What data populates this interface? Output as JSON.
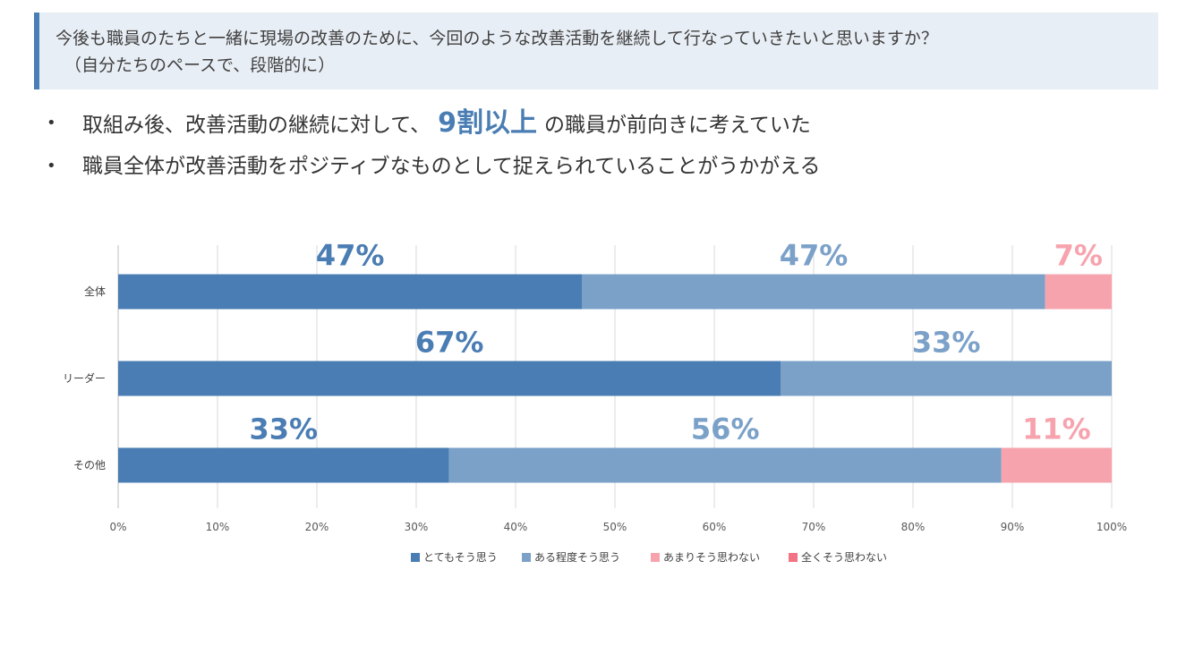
{
  "header": {
    "question_line1": "今後も職員のたちと一緒に現場の改善のために、今回のような改善活動を継続して行なっていきたいと思いますか？",
    "question_line2": "（自分たちのペースで、段階的に）"
  },
  "bullets": [
    {
      "before": "取組み後、改善活動の継続に対して、",
      "highlight": "9割以上",
      "after": "の職員が前向きに考えていた"
    },
    {
      "before": "職員全体が改善活動をポジティブなものとして捉えられていることがうかがえる",
      "highlight": "",
      "after": ""
    }
  ],
  "bullet_symbol": "•",
  "colors": {
    "accent": "#4a7db3",
    "box_bg": "#e8eef5",
    "series": [
      "#4a7db3",
      "#7ba1c9",
      "#f7a3ae",
      "#f27383"
    ]
  },
  "chart_data": {
    "type": "bar",
    "orientation": "horizontal",
    "stacked": true,
    "categories": [
      "全体",
      "リーダー",
      "その他"
    ],
    "series": [
      {
        "name": "とてもそう思う",
        "values": [
          46.7,
          66.7,
          33.3
        ],
        "labels": [
          "47%",
          "67%",
          "33%"
        ]
      },
      {
        "name": "ある程度そう思う",
        "values": [
          46.6,
          33.3,
          55.6
        ],
        "labels": [
          "47%",
          "33%",
          "56%"
        ]
      },
      {
        "name": "あまりそう思わない",
        "values": [
          6.7,
          0,
          11.1
        ],
        "labels": [
          "7%",
          "",
          "11%"
        ]
      },
      {
        "name": "全くそう思わない",
        "values": [
          0,
          0,
          0
        ],
        "labels": [
          "",
          "",
          ""
        ]
      }
    ],
    "xlim": [
      0,
      100
    ],
    "xticks": [
      "0%",
      "10%",
      "20%",
      "30%",
      "40%",
      "50%",
      "60%",
      "70%",
      "80%",
      "90%",
      "100%"
    ],
    "grid": true,
    "legend": "bottom"
  }
}
